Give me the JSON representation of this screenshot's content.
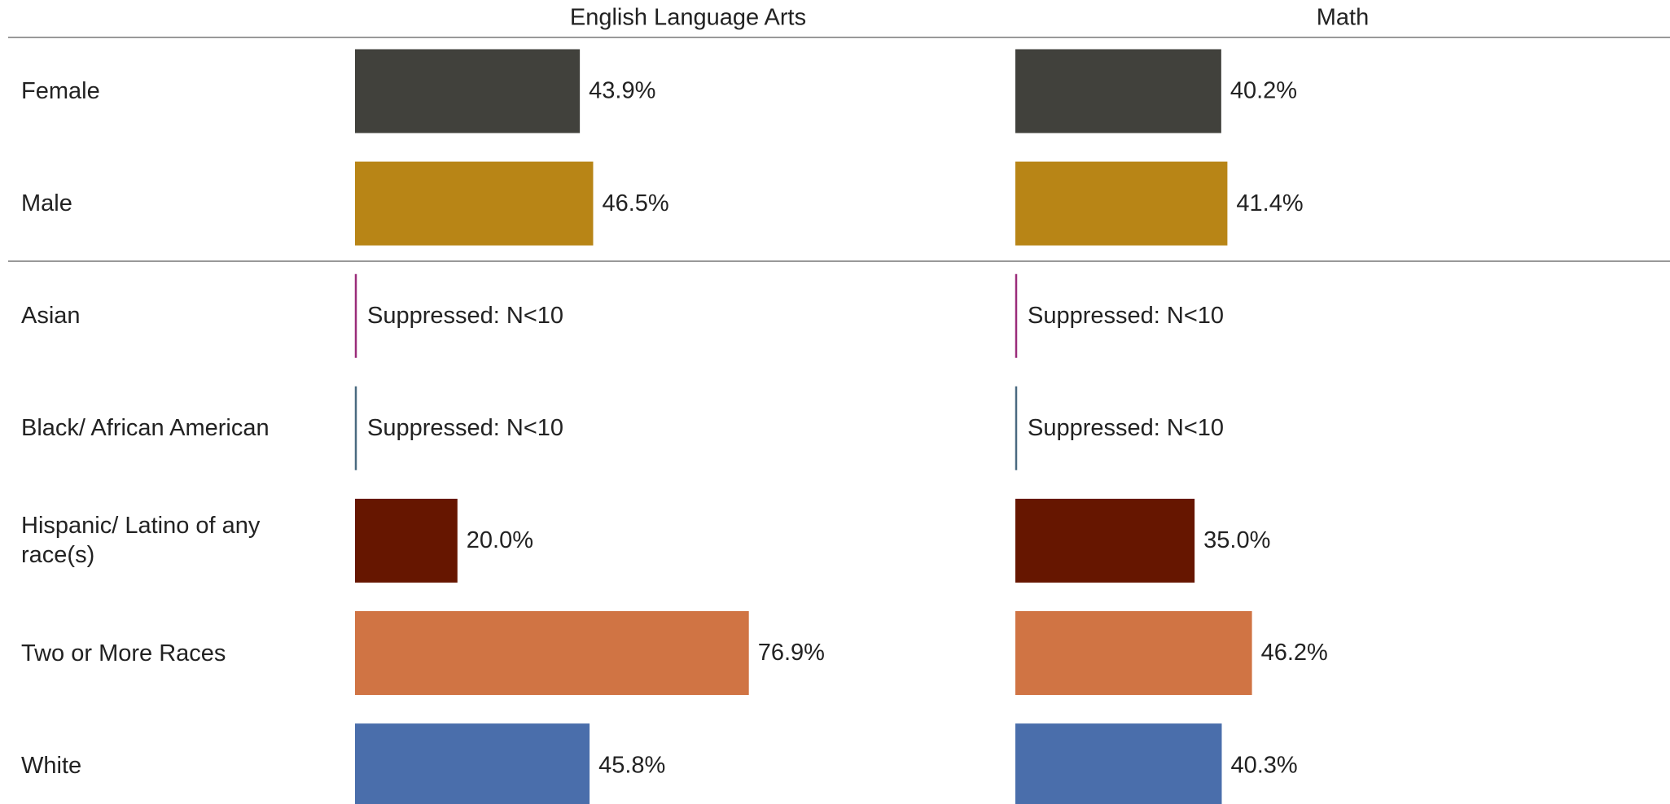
{
  "chart_data": {
    "type": "bar",
    "orientation": "horizontal",
    "categories": [
      "Female",
      "Male",
      "Asian",
      "Black/ African American",
      "Hispanic/ Latino of any race(s)",
      "Two or More Races",
      "White"
    ],
    "colors": [
      "#41413c",
      "#b88516",
      "#9b2c7a",
      "#4a6a80",
      "#661600",
      "#d07444",
      "#4a6eab"
    ],
    "series": [
      {
        "name": "English Language Arts",
        "values": [
          43.9,
          46.5,
          null,
          null,
          20.0,
          76.9,
          45.8
        ],
        "value_labels": [
          "43.9%",
          "46.5%",
          "Suppressed: N<10",
          "Suppressed: N<10",
          "20.0%",
          "76.9%",
          "45.8%"
        ]
      },
      {
        "name": "Math",
        "values": [
          40.2,
          41.4,
          null,
          null,
          35.0,
          46.2,
          40.3
        ],
        "value_labels": [
          "40.2%",
          "41.4%",
          "Suppressed: N<10",
          "Suppressed: N<10",
          "35.0%",
          "46.2%",
          "40.3%"
        ]
      }
    ]
  }
}
